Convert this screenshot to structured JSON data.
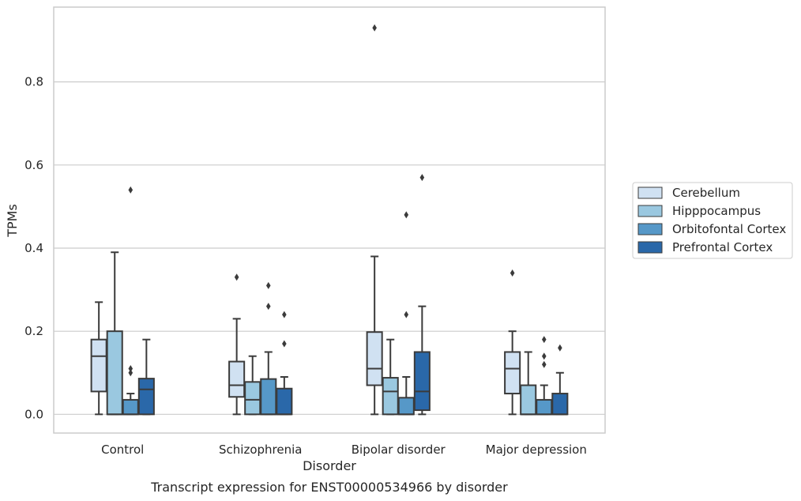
{
  "chart_data": {
    "type": "boxplot",
    "title": "Transcript expression for ENST00000534966 by disorder",
    "xlabel": "Disorder",
    "ylabel": "TPMs",
    "categories": [
      "Control",
      "Schizophrenia",
      "Bipolar disorder",
      "Major depression"
    ],
    "ylim": [
      -0.045,
      0.98
    ],
    "yticks": [
      0.0,
      0.2,
      0.4,
      0.6,
      0.8
    ],
    "ytick_labels": [
      "0.0",
      "0.2",
      "0.4",
      "0.6",
      "0.8"
    ],
    "grid": "horizontal",
    "legend_position": "right",
    "series": [
      {
        "name": "Cerebellum",
        "color": "#d0e1f2",
        "boxes": [
          {
            "whislo": 0.0,
            "q1": 0.055,
            "med": 0.14,
            "q3": 0.18,
            "whishi": 0.27,
            "fliers": []
          },
          {
            "whislo": 0.0,
            "q1": 0.042,
            "med": 0.07,
            "q3": 0.127,
            "whishi": 0.23,
            "fliers": [
              0.33
            ]
          },
          {
            "whislo": 0.0,
            "q1": 0.07,
            "med": 0.11,
            "q3": 0.198,
            "whishi": 0.38,
            "fliers": [
              0.93
            ]
          },
          {
            "whislo": 0.0,
            "q1": 0.05,
            "med": 0.11,
            "q3": 0.15,
            "whishi": 0.2,
            "fliers": [
              0.34
            ]
          }
        ]
      },
      {
        "name": "Hipppocampus",
        "color": "#9ac8e0",
        "boxes": [
          {
            "whislo": 0.0,
            "q1": 0.0,
            "med": 0.0,
            "q3": 0.2,
            "whishi": 0.39,
            "fliers": []
          },
          {
            "whislo": 0.0,
            "q1": 0.0,
            "med": 0.035,
            "q3": 0.078,
            "whishi": 0.14,
            "fliers": []
          },
          {
            "whislo": 0.0,
            "q1": 0.0,
            "med": 0.055,
            "q3": 0.088,
            "whishi": 0.18,
            "fliers": []
          },
          {
            "whislo": 0.0,
            "q1": 0.0,
            "med": 0.0,
            "q3": 0.07,
            "whishi": 0.15,
            "fliers": []
          }
        ]
      },
      {
        "name": "Orbitofontal Cortex",
        "color": "#5698c8",
        "boxes": [
          {
            "whislo": 0.0,
            "q1": 0.0,
            "med": 0.0,
            "q3": 0.035,
            "whishi": 0.05,
            "fliers": [
              0.1,
              0.11,
              0.54
            ]
          },
          {
            "whislo": 0.0,
            "q1": 0.0,
            "med": 0.0,
            "q3": 0.085,
            "whishi": 0.15,
            "fliers": [
              0.26,
              0.31
            ]
          },
          {
            "whislo": 0.0,
            "q1": 0.0,
            "med": 0.0,
            "q3": 0.04,
            "whishi": 0.09,
            "fliers": [
              0.24,
              0.48
            ]
          },
          {
            "whislo": 0.0,
            "q1": 0.0,
            "med": 0.0,
            "q3": 0.035,
            "whishi": 0.07,
            "fliers": [
              0.12,
              0.14,
              0.18
            ]
          }
        ]
      },
      {
        "name": "Prefrontal Cortex",
        "color": "#2a68a9",
        "boxes": [
          {
            "whislo": 0.0,
            "q1": 0.0,
            "med": 0.06,
            "q3": 0.086,
            "whishi": 0.18,
            "fliers": []
          },
          {
            "whislo": 0.0,
            "q1": 0.0,
            "med": 0.0,
            "q3": 0.062,
            "whishi": 0.09,
            "fliers": [
              0.17,
              0.24
            ]
          },
          {
            "whislo": 0.0,
            "q1": 0.01,
            "med": 0.055,
            "q3": 0.15,
            "whishi": 0.26,
            "fliers": [
              0.57
            ]
          },
          {
            "whislo": 0.0,
            "q1": 0.0,
            "med": 0.0,
            "q3": 0.05,
            "whishi": 0.1,
            "fliers": [
              0.16
            ]
          }
        ]
      }
    ]
  }
}
